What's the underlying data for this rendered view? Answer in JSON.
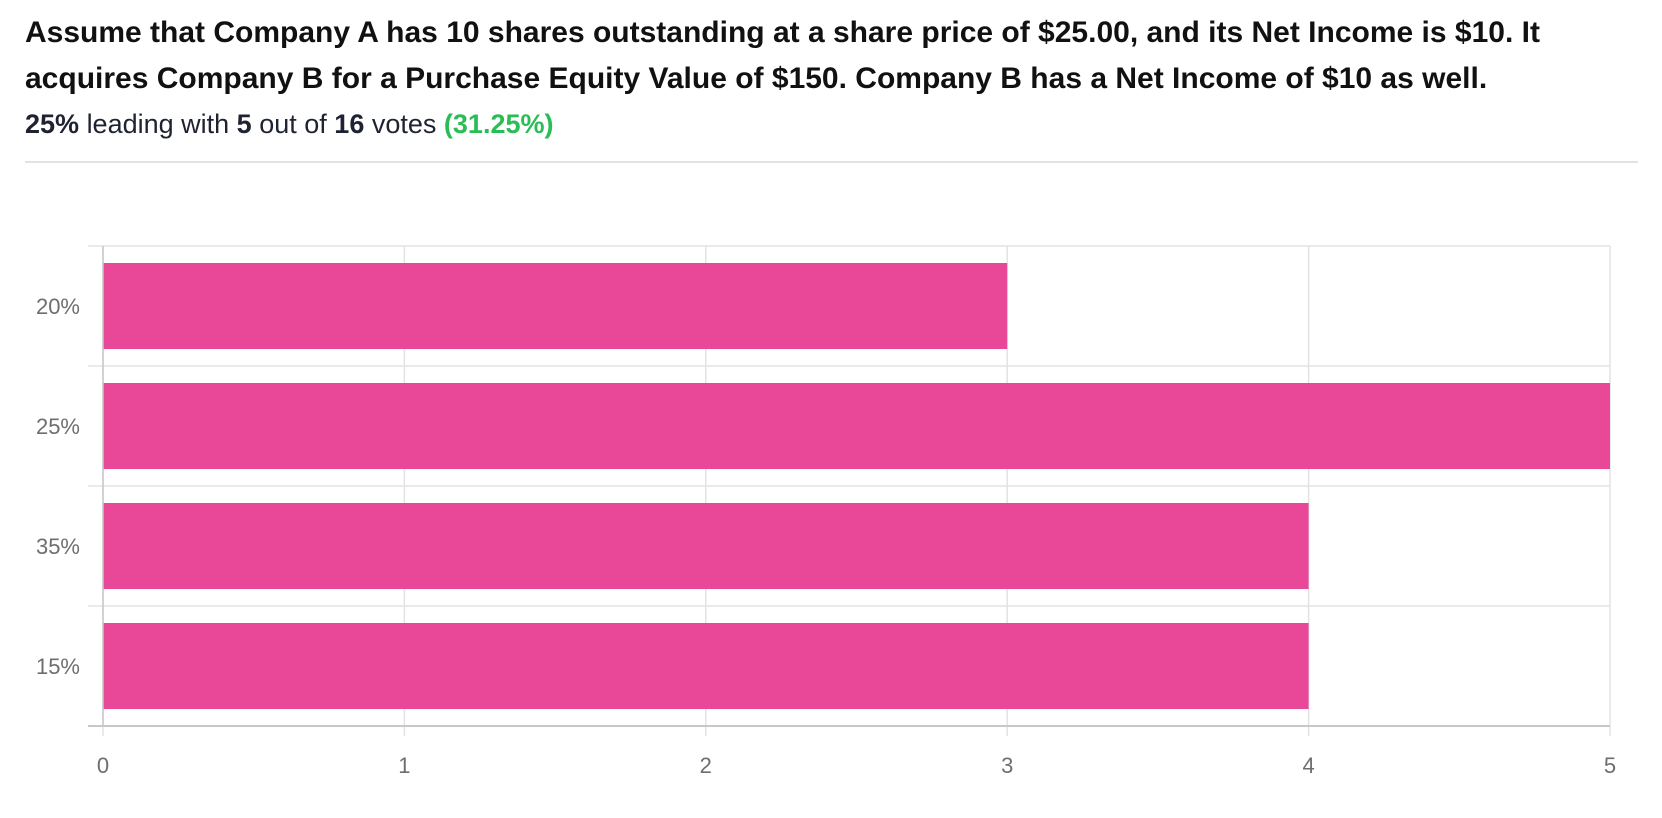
{
  "question": "Assume that Company A has 10 shares outstanding at a share price of $25.00, and its Net Income is $10. It acquires Company B for a Purchase Equity Value of $150. Company B has a Net Income of $10 as well.",
  "summary": {
    "leader": "25%",
    "text1": "leading with",
    "leader_votes": "5",
    "text2": "out of",
    "total_votes": "16",
    "text3": "votes",
    "leader_share": "(31.25%)"
  },
  "colors": {
    "bar": "#e94898",
    "accent_green": "#2bbd55",
    "grid": "#e3e3e3",
    "axis": "#c8c8c8"
  },
  "chart_data": {
    "type": "bar",
    "orientation": "horizontal",
    "categories": [
      "20%",
      "25%",
      "35%",
      "15%"
    ],
    "values": [
      3,
      5,
      4,
      4
    ],
    "xlim": [
      0,
      5
    ],
    "xticks": [
      0,
      1,
      2,
      3,
      4,
      5
    ],
    "grid": true
  }
}
